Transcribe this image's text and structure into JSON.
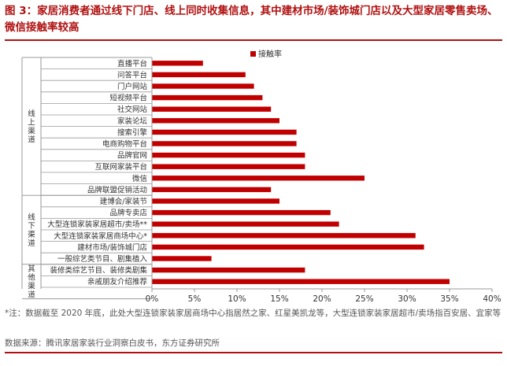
{
  "title": "图 3：家居消费者通过线下门店、线上同时收集信息，其中建材市场/装饰城门店以及大型家居零售卖场、微信接触率较高",
  "note": "*注：数据截至 2020 年底，此处大型连锁家装家居商场中心指居然之家、红星美凯龙等，大型连锁家装家居超市/卖场指百安居、宜家等",
  "source": "数据来源：腾讯家居家装行业洞察白皮书，东方证券研究所",
  "colors": {
    "bar": "#c00000",
    "title": "#b01010",
    "text": "#333333"
  },
  "chart_data": {
    "type": "bar",
    "orientation": "horizontal",
    "legend": {
      "label": "接触率",
      "position": "top"
    },
    "xlim": [
      0,
      0.4
    ],
    "xticks": [
      "0%",
      "5%",
      "10%",
      "15%",
      "20%",
      "25%",
      "30%",
      "35%",
      "40%"
    ],
    "xtick_values": [
      0,
      0.05,
      0.1,
      0.15,
      0.2,
      0.25,
      0.3,
      0.35,
      0.4
    ],
    "groups": [
      {
        "label": "线上渠道",
        "start": 0,
        "end": 11
      },
      {
        "label": "线下渠道",
        "start": 12,
        "end": 17
      },
      {
        "label": "其他渠道",
        "start": 18,
        "end": 20
      }
    ],
    "categories": [
      "直播平台",
      "问答平台",
      "门户网站",
      "短视频平台",
      "社交网站",
      "家装论坛",
      "搜索引擎",
      "电商购物平台",
      "品牌官网",
      "互联网家装平台",
      "微信",
      "品牌联盟促销活动",
      "建博会/家装节",
      "品牌专卖店",
      "大型连锁家装家居超市/卖场**",
      "大型连锁家装家居商场中心*",
      "建材市场/装饰城门店",
      "一般综艺类节目、剧集植入",
      "装修类综艺节目、装修类剧集",
      "亲戚朋友介绍推荐"
    ],
    "values": [
      0.06,
      0.11,
      0.12,
      0.13,
      0.14,
      0.15,
      0.17,
      0.17,
      0.18,
      0.18,
      0.25,
      0.14,
      0.15,
      0.21,
      0.22,
      0.31,
      0.32,
      0.07,
      0.18,
      0.35
    ],
    "grid": false
  }
}
